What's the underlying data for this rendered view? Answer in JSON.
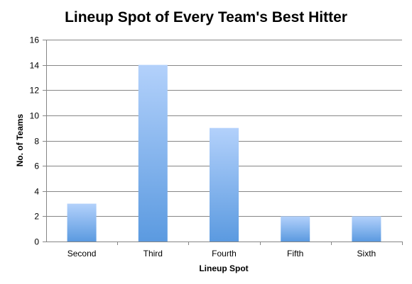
{
  "chart_data": {
    "type": "bar",
    "title": "Lineup Spot of Every Team's Best Hitter",
    "xlabel": "Lineup Spot",
    "ylabel": "No. of Teams",
    "categories": [
      "Second",
      "Third",
      "Fourth",
      "Fifth",
      "Sixth"
    ],
    "values": [
      3,
      14,
      9,
      2,
      2
    ],
    "ylim": [
      0,
      16
    ],
    "yticks": [
      0,
      2,
      4,
      6,
      8,
      10,
      12,
      14,
      16
    ],
    "grid": true,
    "legend": "none",
    "bar_color_top": "#b3d1fb",
    "bar_color_bottom": "#5b9ae0"
  }
}
